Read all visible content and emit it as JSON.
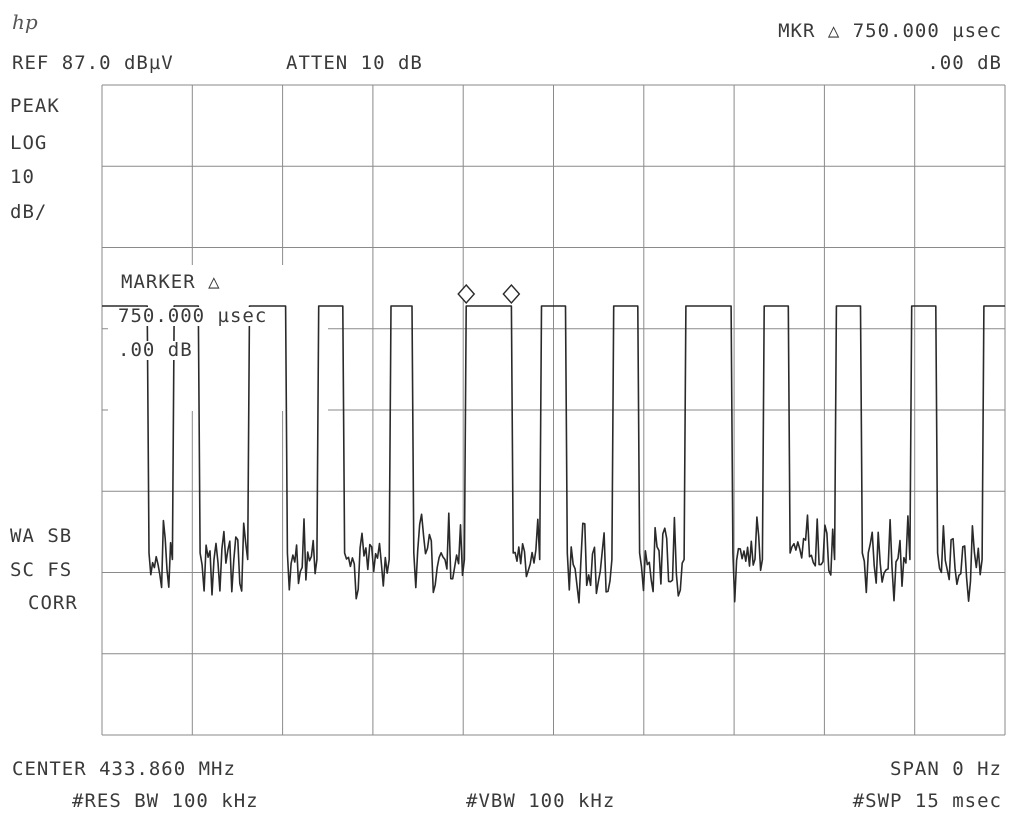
{
  "header": {
    "logo": "hp",
    "marker_readout_line1": "MKR △ 750.000 µsec",
    "marker_readout_line2": ".00 dB",
    "ref_level": "REF 87.0 dBµV",
    "attenuation": "ATTEN 10 dB"
  },
  "left_annotations": {
    "detector": "PEAK",
    "scale_mode": "LOG",
    "scale_value": "10",
    "scale_unit": "dB/",
    "status_line1": "WA SB",
    "status_line2": "SC FS",
    "status_line3": "CORR"
  },
  "marker_box": {
    "line1": "MARKER △",
    "line2": "750.000 µsec",
    "line3": ".00 dB"
  },
  "footer": {
    "center": "CENTER 433.860 MHz",
    "span": "SPAN 0 Hz",
    "rbw": "#RES BW 100 kHz",
    "vbw": "#VBW 100 kHz",
    "sweep": "#SWP 15 msec"
  },
  "colors": {
    "trace": "#2a2a2a",
    "grid": "#8a8a8a",
    "text": "#3a3a3a"
  },
  "chart_data": {
    "type": "line",
    "title": "",
    "x_unit": "msec",
    "xlim": [
      0,
      15
    ],
    "ylim": [
      -13,
      87
    ],
    "y_unit": "dBµV",
    "grid": true,
    "x_divisions": 10,
    "y_divisions": 8,
    "high_level": 53,
    "noise_level": 13,
    "pulses": [
      {
        "start": 0.0,
        "end": 0.75
      },
      {
        "start": 1.2,
        "end": 1.6
      },
      {
        "start": 2.45,
        "end": 3.05
      },
      {
        "start": 3.6,
        "end": 4.0
      },
      {
        "start": 4.8,
        "end": 5.15
      },
      {
        "start": 6.05,
        "end": 6.8
      },
      {
        "start": 7.3,
        "end": 7.7
      },
      {
        "start": 8.5,
        "end": 8.9
      },
      {
        "start": 9.7,
        "end": 10.45
      },
      {
        "start": 11.0,
        "end": 11.4
      },
      {
        "start": 12.2,
        "end": 12.6
      },
      {
        "start": 13.45,
        "end": 13.85
      },
      {
        "start": 14.65,
        "end": 15.0
      }
    ],
    "markers": [
      {
        "x": 6.05,
        "y": 53
      },
      {
        "x": 6.8,
        "y": 53
      }
    ],
    "delta_time": "750.000 µsec",
    "delta_level": ".00 dB"
  }
}
